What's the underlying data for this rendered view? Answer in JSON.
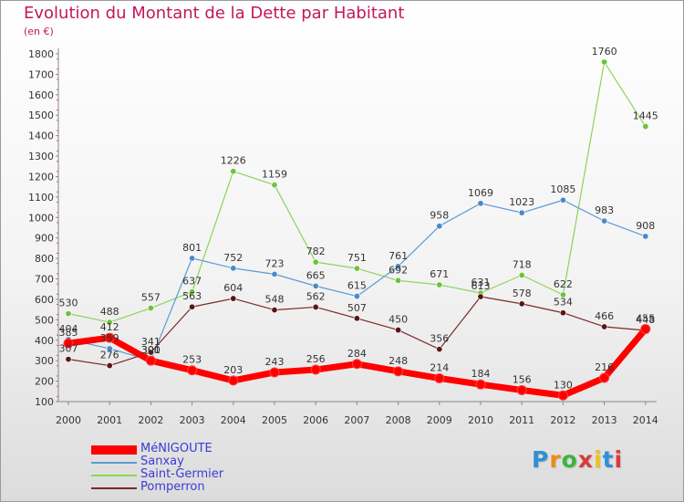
{
  "title": "Evolution du Montant de la Dette par Habitant",
  "subtitle": "(en €)",
  "logo": {
    "text": "Proxiti",
    "letter_colors": [
      "#2f8fd8",
      "#f08c12",
      "#3fb33f",
      "#d93b3b",
      "#f0c21a",
      "#2f8fd8",
      "#d93b3b"
    ]
  },
  "chart_data": {
    "type": "line",
    "x": [
      "2000",
      "2001",
      "2002",
      "2003",
      "2004",
      "2005",
      "2006",
      "2007",
      "2008",
      "2009",
      "2010",
      "2011",
      "2012",
      "2013",
      "2014"
    ],
    "ylim": [
      100,
      1800
    ],
    "yticks": [
      100,
      200,
      300,
      400,
      500,
      600,
      700,
      800,
      900,
      1000,
      1100,
      1200,
      1300,
      1400,
      1500,
      1600,
      1700,
      1800
    ],
    "grid": false,
    "legend_position": "bottom-left",
    "series": [
      {
        "name": "Saint-Germier",
        "color": "#8cd45a",
        "marker": "#6bc43a",
        "width": 1.2,
        "values": [
          530,
          488,
          557,
          637,
          1226,
          1159,
          782,
          751,
          692,
          671,
          631,
          718,
          622,
          1760,
          1445
        ]
      },
      {
        "name": "Sanxay",
        "color": "#5b9bd5",
        "marker": "#4a8ac9",
        "width": 1.2,
        "values": [
          404,
          359,
          301,
          801,
          752,
          723,
          665,
          615,
          761,
          958,
          1069,
          1023,
          1085,
          983,
          908
        ]
      },
      {
        "name": "Pomperron",
        "color": "#7a2a2a",
        "marker": "#5a1515",
        "width": 1.2,
        "values": [
          307,
          276,
          341,
          563,
          604,
          548,
          562,
          507,
          450,
          356,
          613,
          578,
          534,
          466,
          448
        ]
      },
      {
        "name": "MéNIGOUTE",
        "color": "#ff0000",
        "marker": "#ff0000",
        "width": 7,
        "values": [
          385,
          412,
          300,
          253,
          203,
          243,
          256,
          284,
          248,
          214,
          184,
          156,
          130,
          216,
          455
        ]
      }
    ],
    "legend_order": [
      "MéNIGOUTE",
      "Sanxay",
      "Saint-Germier",
      "Pomperron"
    ]
  }
}
